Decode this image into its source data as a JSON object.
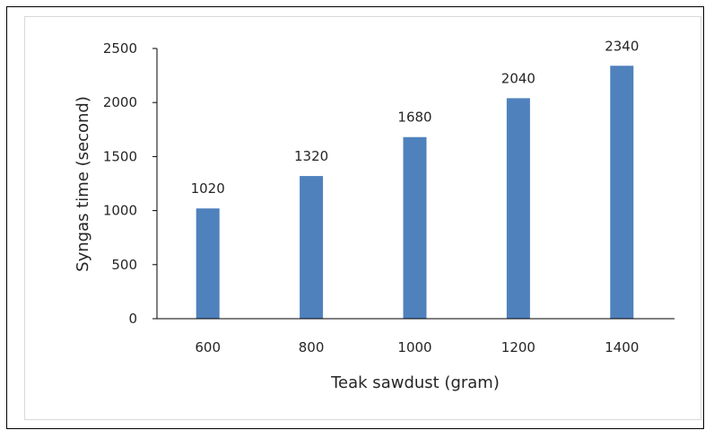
{
  "chart_data": {
    "type": "bar",
    "categories": [
      "600",
      "800",
      "1000",
      "1200",
      "1400"
    ],
    "values": [
      1020,
      1320,
      1680,
      2040,
      2340
    ],
    "data_labels": [
      "1020",
      "1320",
      "1680",
      "2040",
      "2340"
    ],
    "xlabel": "Teak sawdust (gram)",
    "ylabel": "Syngas time (second)",
    "ylim": [
      0,
      2500
    ],
    "yticks": [
      "0",
      "500",
      "1000",
      "1500",
      "2000",
      "2500"
    ],
    "grid": false,
    "legend": "none",
    "bar_color": "#4f81bd",
    "axis_color": "#000000",
    "text_color": "#262626"
  }
}
